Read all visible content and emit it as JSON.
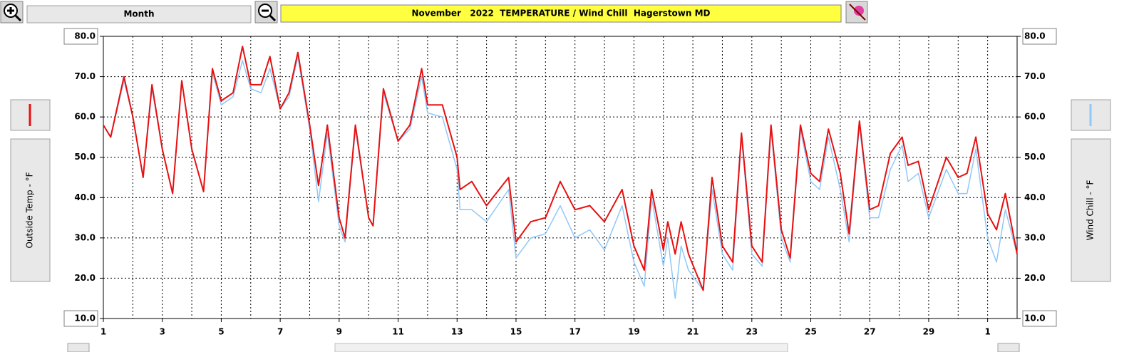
{
  "chart_data": {
    "type": "line",
    "title": "November   2022  TEMPERATURE / Wind Chill  Hagerstown MD",
    "period": "Month",
    "x": [
      1.0,
      1.25,
      1.7,
      2.0,
      2.35,
      2.65,
      3.0,
      3.35,
      3.66,
      4.0,
      4.4,
      4.7,
      5.0,
      5.4,
      5.72,
      6.0,
      6.35,
      6.65,
      7.0,
      7.3,
      7.6,
      8.0,
      8.3,
      8.6,
      9.0,
      9.2,
      9.55,
      10.0,
      10.15,
      10.5,
      11.0,
      11.4,
      11.8,
      12.0,
      12.5,
      13.0,
      13.1,
      13.5,
      14.0,
      14.75,
      15.0,
      15.5,
      16.0,
      16.5,
      17.0,
      17.5,
      18.0,
      18.6,
      19.0,
      19.35,
      19.6,
      20.0,
      20.15,
      20.4,
      20.6,
      20.85,
      21.35,
      21.65,
      22.0,
      22.35,
      22.65,
      23.0,
      23.35,
      23.65,
      24.0,
      24.3,
      24.65,
      25.0,
      25.3,
      25.6,
      26.0,
      26.3,
      26.65,
      27.0,
      27.3,
      27.7,
      28.1,
      28.3,
      28.65,
      29.0,
      29.6,
      30.0,
      30.3,
      30.6,
      31.0,
      31.3,
      31.6,
      32.0
    ],
    "series": [
      {
        "name": "Wind Chill - °F",
        "color": "#90c8f8",
        "axis": "y2",
        "values": [
          58,
          55,
          69,
          60,
          45,
          67,
          52,
          41,
          69,
          52,
          41.5,
          71,
          63,
          65,
          74,
          67,
          66,
          72,
          62,
          65,
          75,
          57,
          39,
          56,
          33,
          29,
          57,
          35,
          33,
          66,
          54,
          57,
          70,
          61,
          60,
          47,
          37,
          37,
          34,
          42,
          25,
          30,
          31,
          38,
          30,
          32,
          27,
          38,
          24,
          18,
          40,
          23,
          30,
          15,
          28,
          22,
          17,
          42,
          26,
          22,
          55,
          26,
          23,
          57,
          30,
          24,
          57,
          44,
          42,
          55,
          42,
          29,
          58,
          35,
          35,
          47,
          53,
          44,
          46,
          35,
          47,
          41,
          41,
          52,
          30,
          24,
          37,
          26
        ]
      },
      {
        "name": "Outside Temp - °F",
        "color": "#e81010",
        "values": [
          58,
          55,
          70,
          60,
          45,
          68,
          52,
          41,
          69,
          52,
          41.5,
          72,
          64,
          66,
          77.5,
          68,
          68,
          75,
          62,
          66,
          76,
          58,
          43,
          58,
          35,
          30,
          58,
          35,
          33,
          67,
          54,
          58,
          72,
          63,
          63,
          50,
          42,
          44,
          38,
          45,
          29,
          34,
          35,
          44,
          37,
          38,
          34,
          42,
          28,
          22,
          42,
          27,
          34,
          26,
          34,
          26,
          17,
          45,
          28,
          24,
          56,
          28,
          24,
          58,
          32,
          25,
          58,
          46,
          44,
          57,
          46,
          31,
          59,
          37,
          38,
          51,
          55,
          48,
          49,
          37,
          50,
          45,
          46,
          55,
          36,
          32,
          41,
          26
        ]
      }
    ],
    "xlim": [
      1,
      32
    ],
    "xticks": [
      1,
      3,
      5,
      7,
      9,
      11,
      13,
      15,
      17,
      19,
      21,
      23,
      25,
      27,
      29,
      {
        "value": 31,
        "label": "1"
      }
    ],
    "ylim": [
      10,
      80
    ],
    "yticks": [
      {
        "value": 10,
        "label": "10.0"
      },
      {
        "value": 20,
        "label": "20.0"
      },
      {
        "value": 30,
        "label": "30.0"
      },
      {
        "value": 40,
        "label": "40.0"
      },
      {
        "value": 50,
        "label": "50.0"
      },
      {
        "value": 60,
        "label": "60.0"
      },
      {
        "value": 70,
        "label": "70.0"
      },
      {
        "value": 80,
        "label": "80.0"
      }
    ],
    "y2lim": [
      10,
      80
    ],
    "y2ticks": [
      {
        "value": 10,
        "label": "10.0"
      },
      {
        "value": 20,
        "label": "20.0"
      },
      {
        "value": 30,
        "label": "30.0"
      },
      {
        "value": 40,
        "label": "40.0"
      },
      {
        "value": 50,
        "label": "50.0"
      },
      {
        "value": 60,
        "label": "60.0"
      },
      {
        "value": 70,
        "label": "70.0"
      },
      {
        "value": 80,
        "label": "80.0"
      }
    ],
    "grid": true
  }
}
